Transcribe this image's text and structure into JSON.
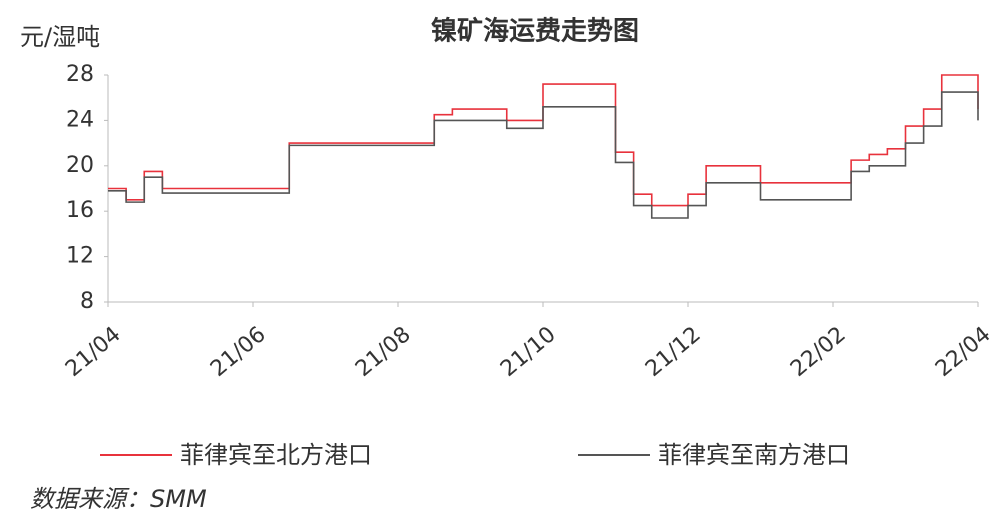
{
  "chart_data": {
    "type": "line",
    "title": "镍矿海运费走势图",
    "y_axis_label": "元/湿吨",
    "source": "数据来源：SMM",
    "categories": [
      "21/04",
      null,
      null,
      null,
      null,
      null,
      null,
      null,
      "21/06",
      null,
      null,
      null,
      null,
      null,
      null,
      null,
      "21/08",
      null,
      null,
      null,
      null,
      null,
      null,
      null,
      "21/10",
      null,
      null,
      null,
      null,
      null,
      null,
      null,
      "21/12",
      null,
      null,
      null,
      null,
      null,
      null,
      null,
      "22/02",
      null,
      null,
      null,
      null,
      null,
      null,
      null,
      "22/04"
    ],
    "series": [
      {
        "name": "菲律宾至北方港口",
        "color": "#e8323c",
        "values": [
          18,
          17,
          19.5,
          18,
          18,
          18,
          18,
          18,
          18,
          18,
          22,
          22,
          22,
          22,
          22,
          22,
          22,
          22,
          24.5,
          25,
          25,
          25,
          24,
          24,
          27.2,
          27.2,
          27.2,
          27.2,
          21.2,
          17.5,
          16.5,
          16.5,
          17.5,
          20,
          20,
          20,
          18.5,
          18.5,
          18.5,
          18.5,
          18.5,
          20.5,
          21,
          21.5,
          23.5,
          25,
          28,
          28,
          25
        ]
      },
      {
        "name": "菲律宾至南方港口",
        "color": "#555555",
        "values": [
          17.8,
          16.8,
          19,
          17.6,
          17.6,
          17.6,
          17.6,
          17.6,
          17.6,
          17.6,
          21.8,
          21.8,
          21.8,
          21.8,
          21.8,
          21.8,
          21.8,
          21.8,
          24,
          24,
          24,
          24,
          23.3,
          23.3,
          25.2,
          25.2,
          25.2,
          25.2,
          20.3,
          16.5,
          15.4,
          15.4,
          16.5,
          18.5,
          18.5,
          18.5,
          17,
          17,
          17,
          17,
          17,
          19.5,
          20,
          20,
          22,
          23.5,
          26.5,
          26.5,
          24
        ]
      }
    ],
    "ylim": [
      8,
      28
    ],
    "yticks": [
      8,
      12,
      16,
      20,
      24,
      28
    ],
    "grid": false
  }
}
